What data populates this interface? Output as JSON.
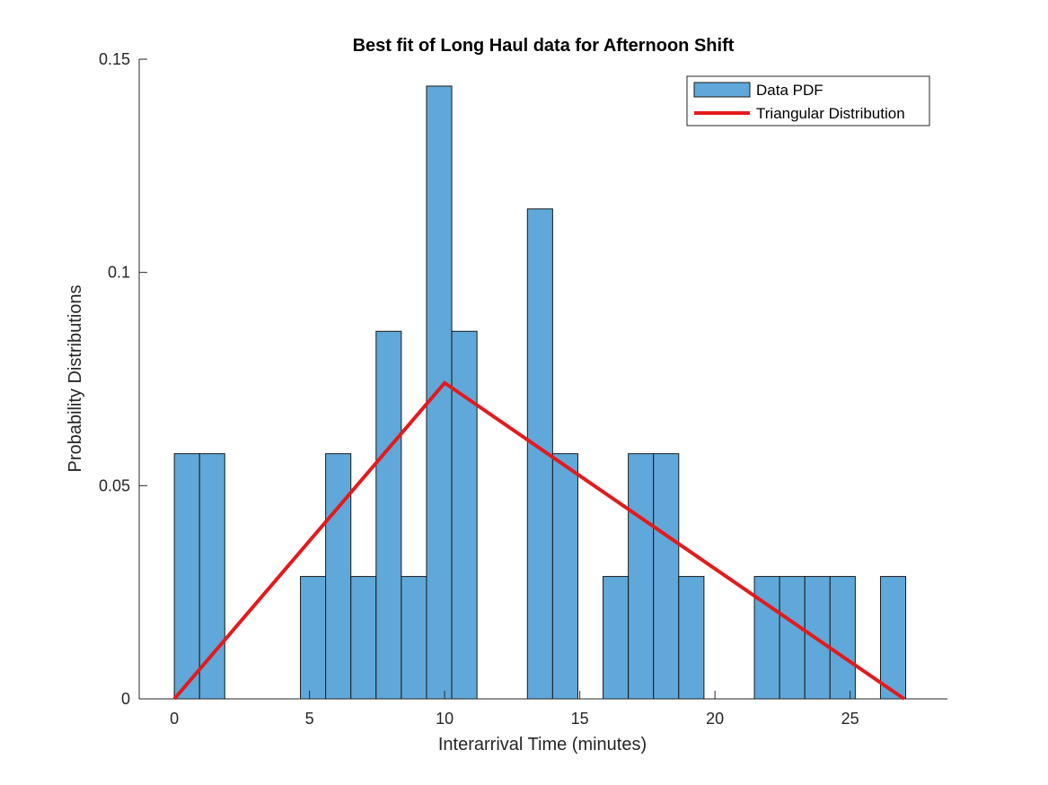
{
  "chart_data": {
    "type": "bar",
    "title": "Best fit of Long Haul data for Afternoon Shift",
    "xlabel": "Interarrival Time (minutes)",
    "ylabel": "Probability Distributions",
    "xlim": [
      -1.3,
      28.6
    ],
    "ylim": [
      0,
      0.15
    ],
    "xticks": [
      0,
      5,
      10,
      15,
      20,
      25
    ],
    "xtick_labels": [
      "0",
      "5",
      "10",
      "15",
      "20",
      "25"
    ],
    "yticks": [
      0,
      0.05,
      0.1,
      0.15
    ],
    "ytick_labels": [
      "0",
      "0.05",
      "0.1",
      "0.15"
    ],
    "grid": false,
    "legend_position": "top-right",
    "colors": {
      "bar": "#5fa8d9",
      "bar_edge": "#1a1a1a",
      "line": "#e41a1c"
    },
    "series": [
      {
        "name": "Data PDF",
        "type": "histogram",
        "bin_start": 0,
        "bin_width": 0.933,
        "values": [
          0.0575,
          0.0575,
          0,
          0,
          0,
          0.0287,
          0.0575,
          0.0287,
          0.0862,
          0.0287,
          0.1437,
          0.0862,
          0,
          0,
          0.1149,
          0.0575,
          0,
          0.0287,
          0.0575,
          0.0575,
          0.0287,
          0,
          0,
          0.0287,
          0.0287,
          0.0287,
          0.0287,
          0,
          0.0287
        ]
      },
      {
        "name": "Triangular Distribution",
        "type": "line",
        "x": [
          0,
          10,
          27
        ],
        "y": [
          0,
          0.0741,
          0
        ]
      }
    ]
  }
}
